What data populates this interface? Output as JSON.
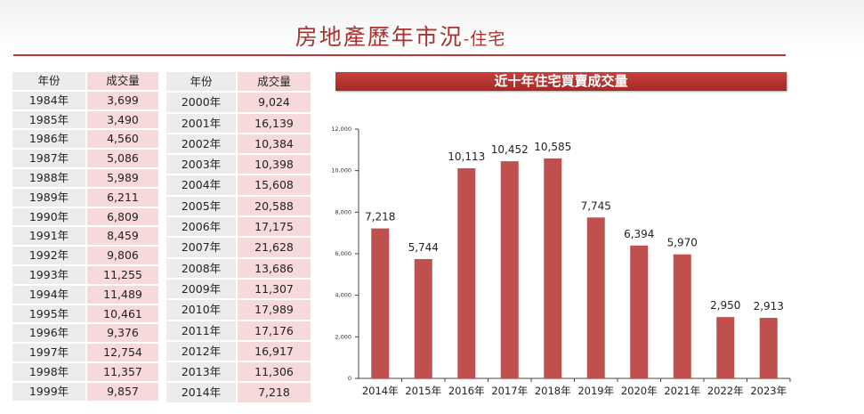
{
  "page": {
    "title_main": "房地產歷年市況",
    "title_sub": "-住宅"
  },
  "tables": {
    "header_year": "年份",
    "header_volume": "成交量",
    "left_rows": [
      {
        "year": "1984年",
        "volume": "3,699"
      },
      {
        "year": "1985年",
        "volume": "3,490"
      },
      {
        "year": "1986年",
        "volume": "4,560"
      },
      {
        "year": "1987年",
        "volume": "5,086"
      },
      {
        "year": "1988年",
        "volume": "5,989"
      },
      {
        "year": "1989年",
        "volume": "6,211"
      },
      {
        "year": "1990年",
        "volume": "6,809"
      },
      {
        "year": "1991年",
        "volume": "8,459"
      },
      {
        "year": "1992年",
        "volume": "9,806"
      },
      {
        "year": "1993年",
        "volume": "11,255"
      },
      {
        "year": "1994年",
        "volume": "11,489"
      },
      {
        "year": "1995年",
        "volume": "10,461"
      },
      {
        "year": "1996年",
        "volume": "9,376"
      },
      {
        "year": "1997年",
        "volume": "12,754"
      },
      {
        "year": "1998年",
        "volume": "11,357"
      },
      {
        "year": "1999年",
        "volume": "9,857"
      }
    ],
    "right_rows": [
      {
        "year": "2000年",
        "volume": "9,024"
      },
      {
        "year": "2001年",
        "volume": "16,139"
      },
      {
        "year": "2002年",
        "volume": "10,384"
      },
      {
        "year": "2003年",
        "volume": "10,398"
      },
      {
        "year": "2004年",
        "volume": "15,608"
      },
      {
        "year": "2005年",
        "volume": "20,588"
      },
      {
        "year": "2006年",
        "volume": "17,175"
      },
      {
        "year": "2007年",
        "volume": "21,628"
      },
      {
        "year": "2008年",
        "volume": "13,686"
      },
      {
        "year": "2009年",
        "volume": "11,307"
      },
      {
        "year": "2010年",
        "volume": "17,989"
      },
      {
        "year": "2011年",
        "volume": "17,176"
      },
      {
        "year": "2012年",
        "volume": "16,917"
      },
      {
        "year": "2013年",
        "volume": "11,306"
      },
      {
        "year": "2014年",
        "volume": "7,218"
      }
    ]
  },
  "colors": {
    "accent": "#b23a36",
    "bar": "#c0504d",
    "year_cell": "#ececec",
    "volume_cell": "#f7d9d9"
  },
  "chart_data": {
    "type": "bar",
    "title": "近十年住宅買賣成交量",
    "categories": [
      "2014年",
      "2015年",
      "2016年",
      "2017年",
      "2018年",
      "2019年",
      "2020年",
      "2021年",
      "2022年",
      "2023年"
    ],
    "values": [
      7218,
      5744,
      10113,
      10452,
      10585,
      7745,
      6394,
      5970,
      2950,
      2913
    ],
    "value_labels": [
      "7,218",
      "5,744",
      "10,113",
      "10,452",
      "10,585",
      "7,745",
      "6,394",
      "5,970",
      "2,950",
      "2,913"
    ],
    "ylim": [
      0,
      12000
    ],
    "yticks": [
      0,
      2000,
      4000,
      6000,
      8000,
      10000,
      12000
    ],
    "ytick_labels": [
      "0",
      "2,000",
      "4,000",
      "6,000",
      "8,000",
      "10,000",
      "12,000"
    ],
    "xlabel": "",
    "ylabel": "",
    "grid": false,
    "legend": "none"
  }
}
